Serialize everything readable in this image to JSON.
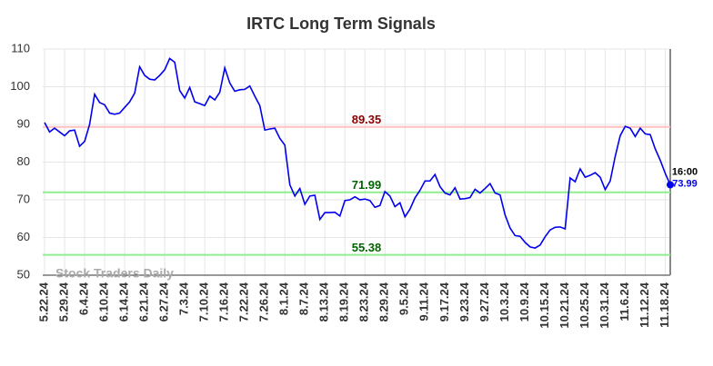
{
  "chart_data": {
    "type": "line",
    "title": "IRTC Long Term Signals",
    "categories": [
      "5.22.24",
      null,
      null,
      null,
      "5.29.24",
      null,
      null,
      null,
      "6.4.24",
      null,
      null,
      null,
      "6.10.24",
      null,
      null,
      null,
      "6.14.24",
      null,
      null,
      null,
      "6.21.24",
      null,
      null,
      null,
      "6.27.24",
      null,
      null,
      null,
      "7.3.24",
      null,
      null,
      null,
      "7.10.24",
      null,
      null,
      null,
      "7.16.24",
      null,
      null,
      null,
      "7.22.24",
      null,
      null,
      null,
      "7.26.24",
      null,
      null,
      null,
      "8.1.24",
      null,
      null,
      null,
      "8.7.24",
      null,
      null,
      null,
      "8.13.24",
      null,
      null,
      null,
      "8.19.24",
      null,
      null,
      null,
      "8.23.24",
      null,
      null,
      null,
      "8.29.24",
      null,
      null,
      null,
      "9.5.24",
      null,
      null,
      null,
      "9.11.24",
      null,
      null,
      null,
      "9.17.24",
      null,
      null,
      null,
      "9.23.24",
      null,
      null,
      null,
      "9.27.24",
      null,
      null,
      null,
      "10.3.24",
      null,
      null,
      null,
      "10.9.24",
      null,
      null,
      null,
      "10.15.24",
      null,
      null,
      null,
      "10.21.24",
      null,
      null,
      null,
      "10.25.24",
      null,
      null,
      null,
      "10.31.24",
      null,
      null,
      null,
      "11.6.24",
      null,
      null,
      null,
      "11.12.24",
      null,
      null,
      null,
      "11.18.24",
      null
    ],
    "values": [
      90.5,
      88,
      89,
      88,
      87,
      88.3,
      88.5,
      84.2,
      85.5,
      90,
      98,
      95.8,
      95.2,
      93,
      92.7,
      93,
      94.5,
      96,
      98.3,
      105.3,
      103,
      102,
      101.8,
      103,
      104.5,
      107.5,
      106.5,
      99,
      97,
      99.8,
      96,
      95.5,
      95,
      97.5,
      96.5,
      98.5,
      105,
      101,
      98.8,
      99.2,
      99.3,
      100.2,
      97.5,
      95,
      88.5,
      88.8,
      89,
      86.3,
      84.5,
      74,
      71,
      73,
      68.8,
      71,
      71.2,
      64.8,
      66.6,
      66.6,
      66.7,
      65.7,
      69.8,
      70,
      70.8,
      70,
      70.2,
      69.8,
      68,
      68.5,
      72.2,
      71,
      68.2,
      69.2,
      65.5,
      67.5,
      70.5,
      72.5,
      75,
      75,
      76.7,
      73.5,
      71.8,
      71.3,
      73.2,
      70.2,
      70.3,
      70.6,
      72.8,
      71.8,
      73,
      74.3,
      71.8,
      71.3,
      66,
      62.5,
      60.5,
      60.3,
      58.7,
      57.5,
      57.2,
      58,
      60.2,
      62,
      62.7,
      62.8,
      62.3,
      75.8,
      74.8,
      78.2,
      76,
      76.5,
      77.2,
      76,
      72.7,
      75,
      81.5,
      87,
      89.5,
      89,
      86.8,
      89,
      87.5,
      87.3,
      83.5,
      80.5,
      77,
      73.99
    ],
    "color": "#0000ee",
    "ylim": [
      50,
      110
    ],
    "yticks": [
      50,
      60,
      70,
      80,
      90,
      100,
      110
    ],
    "grid": true,
    "hlines": [
      {
        "value": 89.35,
        "color": "#ffc0c0",
        "label_color": "#8b0000"
      },
      {
        "value": 71.99,
        "color": "#90ee90",
        "label_color": "#006400"
      },
      {
        "value": 55.38,
        "color": "#90ee90",
        "label_color": "#006400"
      }
    ],
    "last_time": "16:00",
    "watermark": "Stock Traders Daily"
  }
}
